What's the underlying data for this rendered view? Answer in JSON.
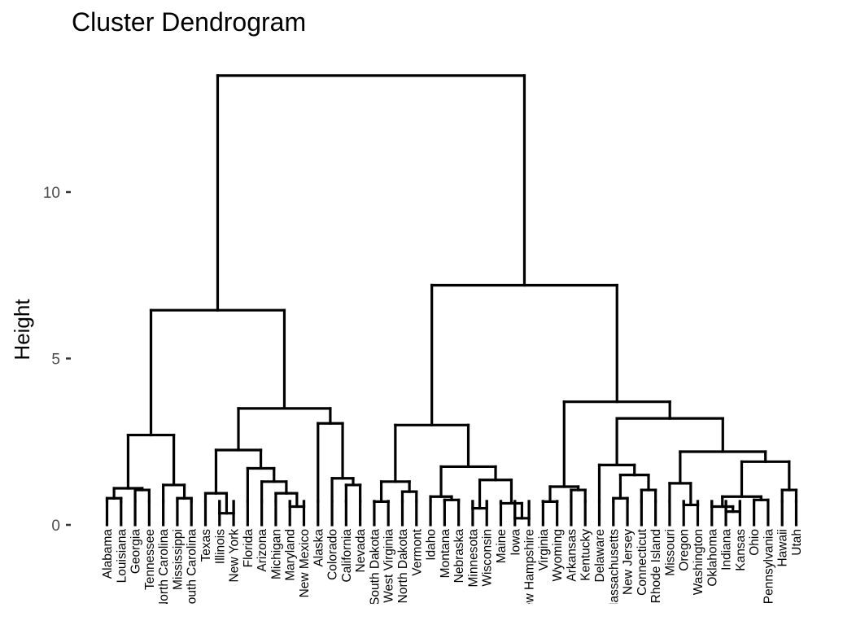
{
  "chart_data": {
    "type": "dendrogram",
    "title": "Cluster Dendrogram",
    "xlabel": "",
    "ylabel": "Height",
    "ylim": [
      0,
      13.6
    ],
    "yticks": [
      0,
      5,
      10
    ],
    "grid": false,
    "leaves": [
      "Alabama",
      "Louisiana",
      "Georgia",
      "Tennessee",
      "North Carolina",
      "Mississippi",
      "South Carolina",
      "Texas",
      "Illinois",
      "New York",
      "Florida",
      "Arizona",
      "Michigan",
      "Maryland",
      "New Mexico",
      "Alaska",
      "Colorado",
      "California",
      "Nevada",
      "South Dakota",
      "West Virginia",
      "North Dakota",
      "Vermont",
      "Idaho",
      "Montana",
      "Nebraska",
      "Minnesota",
      "Wisconsin",
      "Maine",
      "Iowa",
      "New Hampshire",
      "Virginia",
      "Wyoming",
      "Arkansas",
      "Kentucky",
      "Delaware",
      "Massachusetts",
      "New Jersey",
      "Connecticut",
      "Rhode Island",
      "Missouri",
      "Oregon",
      "Washington",
      "Oklahoma",
      "Indiana",
      "Kansas",
      "Ohio",
      "Pennsylvania",
      "Hawaii",
      "Utah"
    ],
    "merges": [
      {
        "left": "Alabama",
        "right": "Louisiana",
        "height": 0.8
      },
      {
        "left": "Georgia",
        "right": "Tennessee",
        "height": 1.05
      },
      {
        "left": "Alabama+Louisiana",
        "right": "Georgia+Tennessee",
        "height": 1.1
      },
      {
        "left": "Mississippi",
        "right": "South Carolina",
        "height": 0.8
      },
      {
        "left": "North Carolina",
        "right": "Mississippi+South Carolina",
        "height": 1.2
      },
      {
        "left": "Alabama–Tennessee",
        "right": "North Carolina–South Carolina",
        "height": 2.7
      },
      {
        "left": "Illinois",
        "right": "New York",
        "height": 0.35
      },
      {
        "left": "Texas",
        "right": "Illinois+New York",
        "height": 0.95
      },
      {
        "left": "Maryland",
        "right": "New Mexico",
        "height": 0.55
      },
      {
        "left": "Michigan",
        "right": "Maryland+New Mexico",
        "height": 0.95
      },
      {
        "left": "Arizona",
        "right": "Michigan–New Mexico",
        "height": 1.3
      },
      {
        "left": "Florida",
        "right": "Arizona–New Mexico",
        "height": 1.7
      },
      {
        "left": "Texas–New York",
        "right": "Florida–New Mexico",
        "height": 2.25
      },
      {
        "left": "California",
        "right": "Nevada",
        "height": 1.2
      },
      {
        "left": "Colorado",
        "right": "California+Nevada",
        "height": 1.4
      },
      {
        "left": "Alaska",
        "right": "Colorado–Nevada",
        "height": 3.05
      },
      {
        "left": "Texas–New Mexico",
        "right": "Alaska–Nevada",
        "height": 3.5
      },
      {
        "left": "Alabama–South Carolina",
        "right": "Texas–Nevada",
        "height": 6.45
      },
      {
        "left": "South Dakota",
        "right": "West Virginia",
        "height": 0.7
      },
      {
        "left": "North Dakota",
        "right": "Vermont",
        "height": 1.0
      },
      {
        "left": "South Dakota+West Virginia",
        "right": "North Dakota+Vermont",
        "height": 1.3
      },
      {
        "left": "Montana",
        "right": "Nebraska",
        "height": 0.75
      },
      {
        "left": "Idaho",
        "right": "Montana+Nebraska",
        "height": 0.85
      },
      {
        "left": "Minnesota",
        "right": "Wisconsin",
        "height": 0.5
      },
      {
        "left": "Iowa",
        "right": "New Hampshire",
        "height": 0.2
      },
      {
        "left": "Maine",
        "right": "Iowa+New Hampshire",
        "height": 0.65
      },
      {
        "left": "Minnesota+Wisconsin",
        "right": "Maine–New Hampshire",
        "height": 1.35
      },
      {
        "left": "Idaho–Nebraska",
        "right": "Minnesota–New Hampshire",
        "height": 1.75
      },
      {
        "left": "South Dakota–Vermont",
        "right": "Idaho–New Hampshire",
        "height": 3.0
      },
      {
        "left": "Virginia",
        "right": "Wyoming",
        "height": 0.7
      },
      {
        "left": "Arkansas",
        "right": "Kentucky",
        "height": 1.05
      },
      {
        "left": "Virginia+Wyoming",
        "right": "Arkansas+Kentucky",
        "height": 1.15
      },
      {
        "left": "Massachusetts",
        "right": "New Jersey",
        "height": 0.8
      },
      {
        "left": "Connecticut",
        "right": "Rhode Island",
        "height": 1.05
      },
      {
        "left": "Massachusetts+New Jersey",
        "right": "Connecticut+Rhode Island",
        "height": 1.5
      },
      {
        "left": "Delaware",
        "right": "Massachusetts–Rhode Island",
        "height": 1.8
      },
      {
        "left": "Oregon",
        "right": "Washington",
        "height": 0.6
      },
      {
        "left": "Missouri",
        "right": "Oregon+Washington",
        "height": 1.25
      },
      {
        "left": "Indiana",
        "right": "Kansas",
        "height": 0.4
      },
      {
        "left": "Oklahoma",
        "right": "Indiana+Kansas",
        "height": 0.55
      },
      {
        "left": "Ohio",
        "right": "Pennsylvania",
        "height": 0.75
      },
      {
        "left": "Oklahoma–Kansas",
        "right": "Ohio+Pennsylvania",
        "height": 0.85
      },
      {
        "left": "Hawaii",
        "right": "Utah",
        "height": 1.05
      },
      {
        "left": "Oklahoma–Pennsylvania",
        "right": "Hawaii+Utah",
        "height": 1.9
      },
      {
        "left": "Missouri–Washington",
        "right": "Oklahoma–Utah",
        "height": 2.2
      },
      {
        "left": "Delaware–Rhode Island",
        "right": "Missouri–Utah",
        "height": 3.2
      },
      {
        "left": "Virginia–Kentucky",
        "right": "Delaware–Utah",
        "height": 3.7
      },
      {
        "left": "South Dakota–New Hampshire",
        "right": "Virginia–Utah",
        "height": 7.2
      },
      {
        "left": "Alabama–Nevada",
        "right": "South Dakota–Utah",
        "height": 13.5
      }
    ]
  }
}
